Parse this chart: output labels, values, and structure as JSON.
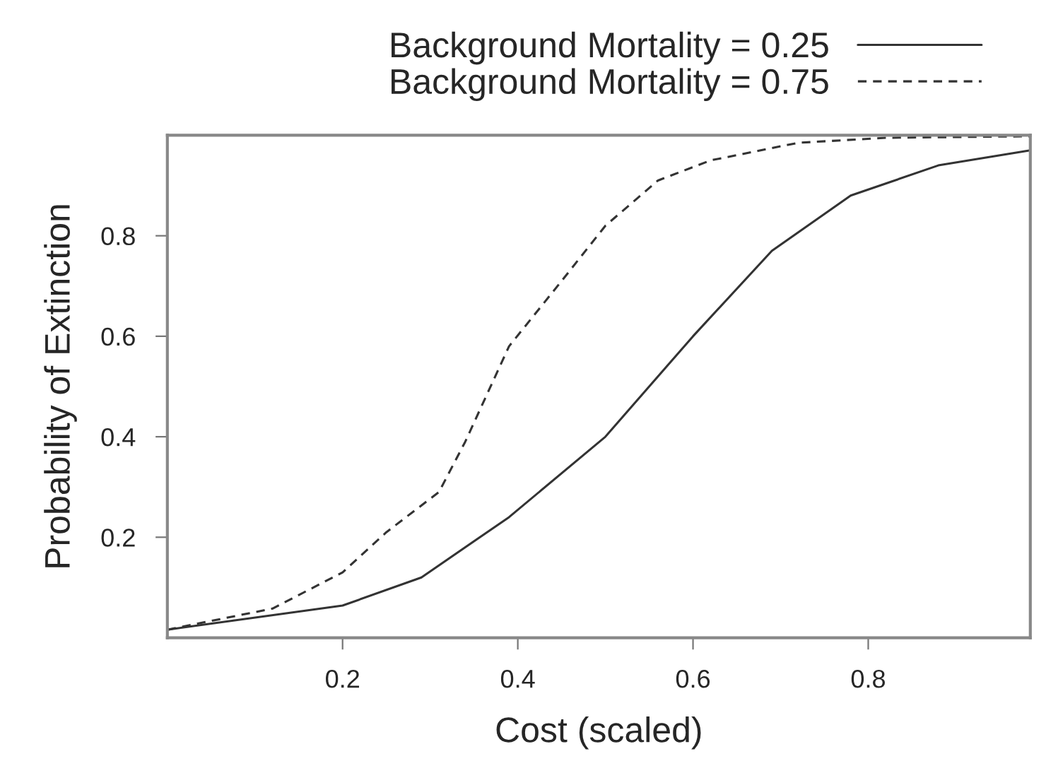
{
  "chart_data": {
    "type": "line",
    "xlabel": "Cost (scaled)",
    "ylabel": "Probability of Extinction",
    "xlim": [
      0,
      0.985
    ],
    "ylim": [
      0,
      1
    ],
    "xticks": [
      0.2,
      0.4,
      0.6,
      0.8
    ],
    "yticks": [
      0.2,
      0.4,
      0.6,
      0.8
    ],
    "grid": false,
    "legend": "top",
    "marker": "none",
    "series": [
      {
        "name": "Background Mortality = 0.25",
        "color": "#333333",
        "line_style": "solid",
        "x": [
          0,
          0.2,
          0.29,
          0.39,
          0.5,
          0.6,
          0.69,
          0.78,
          0.88,
          0.985
        ],
        "values": [
          0.016,
          0.064,
          0.12,
          0.24,
          0.4,
          0.6,
          0.77,
          0.88,
          0.94,
          0.97
        ]
      },
      {
        "name": "Background Mortality = 0.75",
        "color": "#333333",
        "line_style": "dashed",
        "x": [
          0,
          0.12,
          0.2,
          0.25,
          0.31,
          0.34,
          0.39,
          0.45,
          0.5,
          0.56,
          0.62,
          0.72,
          0.82,
          0.985
        ],
        "values": [
          0.016,
          0.058,
          0.13,
          0.21,
          0.29,
          0.39,
          0.58,
          0.71,
          0.82,
          0.91,
          0.95,
          0.985,
          0.995,
          0.998
        ]
      }
    ]
  }
}
